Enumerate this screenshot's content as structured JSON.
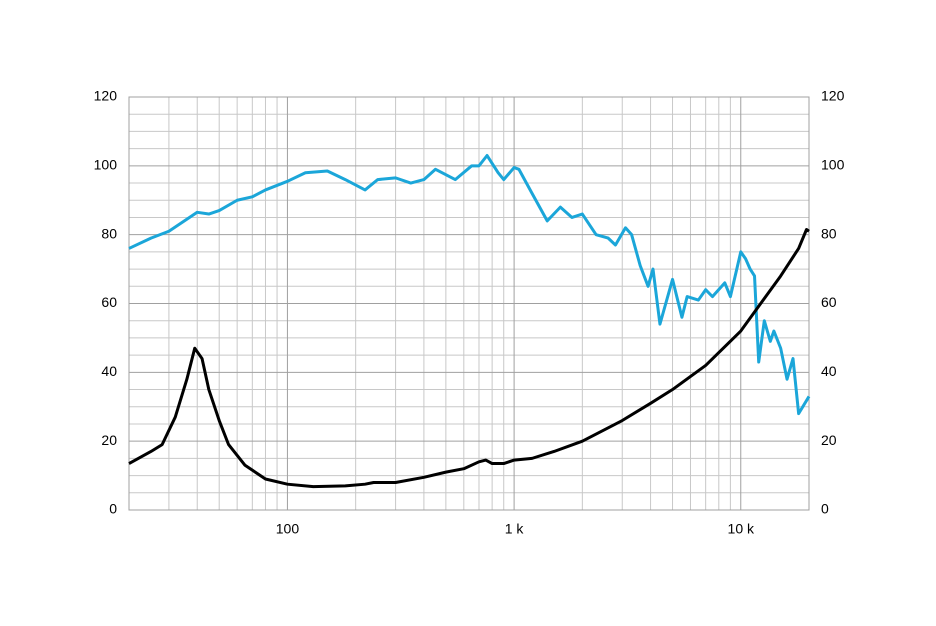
{
  "chart_data": {
    "type": "line",
    "xscale": "log",
    "xlim": [
      20,
      20000
    ],
    "xticks": [
      {
        "value": 100,
        "label": "100"
      },
      {
        "value": 1000,
        "label": "1 k"
      },
      {
        "value": 10000,
        "label": "10 k"
      }
    ],
    "xminorticks": [
      30,
      40,
      50,
      60,
      70,
      80,
      90,
      200,
      300,
      400,
      500,
      600,
      700,
      800,
      900,
      2000,
      3000,
      4000,
      5000,
      6000,
      7000,
      8000,
      9000
    ],
    "ylim": [
      0,
      120
    ],
    "yticks": [
      0,
      20,
      40,
      60,
      80,
      100,
      120
    ],
    "y2lim": [
      0,
      120
    ],
    "y2ticks": [
      0,
      20,
      40,
      60,
      80,
      100,
      120
    ],
    "yminorticks": [
      5,
      10,
      15,
      25,
      30,
      35,
      45,
      50,
      55,
      65,
      70,
      75,
      85,
      90,
      95,
      105,
      110,
      115
    ],
    "grid": true,
    "series": [
      {
        "color": "#1ba6d9",
        "x": [
          20,
          25,
          30,
          40,
          45,
          50,
          60,
          70,
          80,
          100,
          120,
          150,
          180,
          220,
          250,
          300,
          350,
          400,
          450,
          550,
          650,
          700,
          760,
          850,
          900,
          1000,
          1050,
          1200,
          1400,
          1600,
          1800,
          2000,
          2300,
          2600,
          2800,
          3100,
          3300,
          3600,
          3900,
          4100,
          4400,
          5000,
          5500,
          5800,
          6500,
          7000,
          7500,
          8500,
          9000,
          10000,
          10500,
          11000,
          11500,
          12000,
          12700,
          13500,
          14000,
          15000,
          16000,
          17000,
          18000,
          20000
        ],
        "values": [
          76,
          79,
          81,
          86.5,
          86,
          87,
          90,
          91,
          93,
          95.5,
          98,
          98.5,
          96,
          93,
          96,
          96.5,
          95,
          96,
          99,
          96,
          100,
          100,
          103,
          98,
          96,
          99.5,
          99,
          92,
          84,
          88,
          85,
          86,
          80,
          79,
          77,
          82,
          80,
          71,
          65,
          70,
          54,
          67,
          56,
          62,
          61,
          64,
          62,
          66,
          62,
          75,
          73,
          70,
          68,
          43,
          55,
          49,
          52,
          47,
          38,
          44,
          28,
          33
        ]
      },
      {
        "color": "#000000",
        "x": [
          20,
          25,
          28,
          32,
          36,
          39,
          42,
          45,
          50,
          55,
          65,
          80,
          100,
          130,
          180,
          220,
          240,
          300,
          400,
          500,
          600,
          700,
          750,
          800,
          900,
          1000,
          1200,
          1500,
          2000,
          3000,
          4000,
          5000,
          7000,
          10000,
          15000,
          18000,
          19500,
          20000
        ],
        "values": [
          13.5,
          17,
          19,
          27,
          38,
          47,
          44,
          35,
          26,
          19,
          13,
          9,
          7.5,
          6.8,
          7,
          7.5,
          8,
          8,
          9.5,
          11,
          12,
          14,
          14.5,
          13.5,
          13.5,
          14.5,
          15,
          17,
          20,
          26,
          31,
          35,
          42,
          52,
          68,
          76,
          81.5,
          81
        ]
      }
    ]
  }
}
